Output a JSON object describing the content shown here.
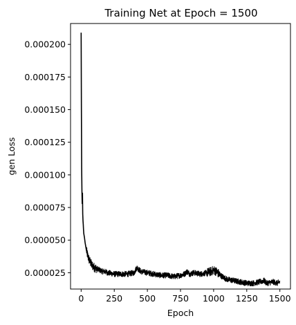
{
  "chart_data": {
    "type": "line",
    "title": "Training Net at Epoch = 1500",
    "xlabel": "Epoch",
    "ylabel": "gen Loss",
    "xlim": [
      -80,
      1580
    ],
    "ylim": [
      1.25e-05,
      0.000216
    ],
    "xticks": [
      0,
      250,
      500,
      750,
      1000,
      1250,
      1500
    ],
    "xtick_labels": [
      "0",
      "250",
      "500",
      "750",
      "1000",
      "1250",
      "1500"
    ],
    "yticks": [
      2.5e-05,
      5e-05,
      7.5e-05,
      0.0001,
      0.000125,
      0.00015,
      0.000175,
      0.0002
    ],
    "ytick_labels": [
      "0.000025",
      "0.000050",
      "0.000075",
      "0.000100",
      "0.000125",
      "0.000150",
      "0.000175",
      "0.000200"
    ],
    "grid": false,
    "legend": "none",
    "series": [
      {
        "color": "#000000",
        "x": [
          0,
          2,
          4,
          6,
          8,
          10,
          12,
          14,
          16,
          18,
          20,
          25,
          30,
          35,
          40,
          45,
          50,
          60,
          70,
          80,
          90,
          100,
          120,
          140,
          160,
          180,
          200,
          250,
          300,
          350,
          400,
          420,
          450,
          500,
          550,
          600,
          650,
          700,
          750,
          780,
          800,
          820,
          850,
          900,
          950,
          980,
          1000,
          1020,
          1050,
          1100,
          1150,
          1200,
          1250,
          1300,
          1350,
          1380,
          1400,
          1450,
          1480,
          1500
        ],
        "y": [
          0.000209,
          0.00015,
          0.000105,
          8.8e-05,
          7.8e-05,
          8.6e-05,
          7e-05,
          6.5e-05,
          6.2e-05,
          5.8e-05,
          5.5e-05,
          5.2e-05,
          4.8e-05,
          4.5e-05,
          4.2e-05,
          4e-05,
          3.8e-05,
          3.5e-05,
          3.3e-05,
          3.1e-05,
          3e-05,
          2.9e-05,
          2.8e-05,
          2.7e-05,
          2.6e-05,
          2.6e-05,
          2.5e-05,
          2.4e-05,
          2.4e-05,
          2.4e-05,
          2.5e-05,
          2.9e-05,
          2.6e-05,
          2.5e-05,
          2.4e-05,
          2.3e-05,
          2.3e-05,
          2.2e-05,
          2.3e-05,
          2.4e-05,
          2.6e-05,
          2.4e-05,
          2.5e-05,
          2.4e-05,
          2.5e-05,
          2.6e-05,
          2.7e-05,
          2.6e-05,
          2.3e-05,
          2e-05,
          1.9e-05,
          1.8e-05,
          1.7e-05,
          1.7e-05,
          1.8e-05,
          1.9e-05,
          1.7e-05,
          1.8e-05,
          1.7e-05,
          1.8e-05
        ]
      }
    ]
  }
}
